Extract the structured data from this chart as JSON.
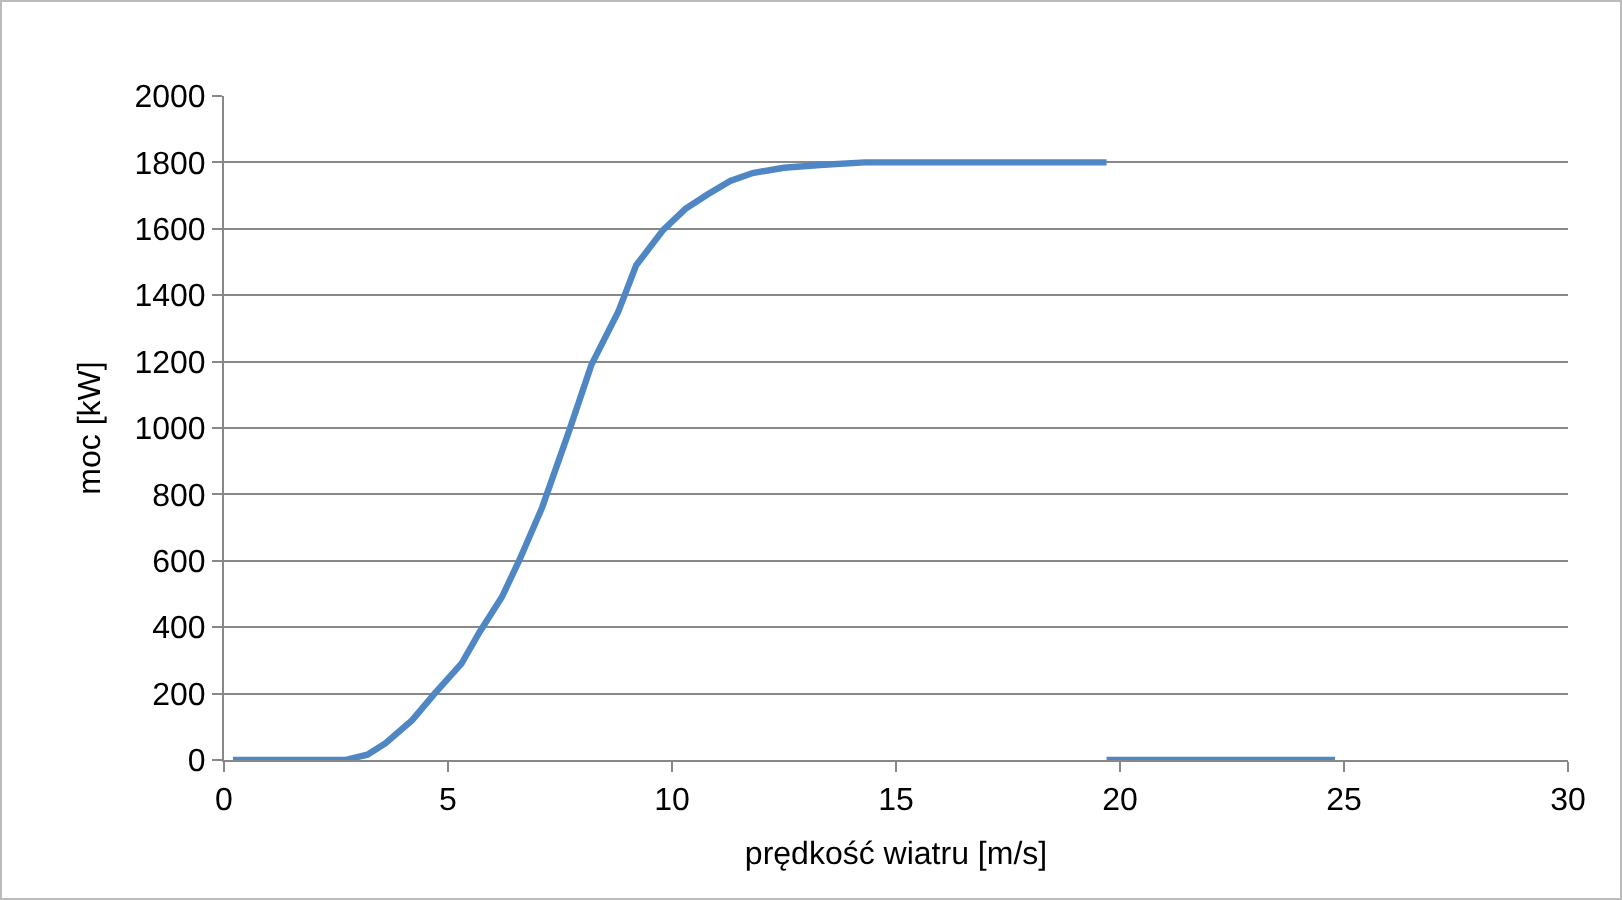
{
  "chart_data": {
    "type": "line",
    "xlabel": "prędkość wiatru [m/s]",
    "ylabel": "moc [kW]",
    "x": [
      0.2,
      2.7,
      3.2,
      3.6,
      4.2,
      4.7,
      5.3,
      5.7,
      6.2,
      6.6,
      7.1,
      7.7,
      8.2,
      8.8,
      9.2,
      9.8,
      10.3,
      10.8,
      11.3,
      11.8,
      12.5,
      13.3,
      14.3,
      19.7
    ],
    "series": [
      {
        "color": "#4f86c4",
        "values": [
          0,
          0,
          16,
          50,
          120,
          200,
          290,
          384,
          490,
          604,
          760,
          990,
          1190,
          1350,
          1490,
          1596,
          1660,
          1704,
          1744,
          1768,
          1784,
          1792,
          1800,
          1800
        ]
      },
      {
        "color": "#4f86c4",
        "x": [
          19.7,
          24.8
        ],
        "values": [
          0,
          0
        ]
      }
    ],
    "xlim": [
      0,
      30
    ],
    "xticks": [
      0,
      5,
      10,
      15,
      20,
      25,
      30
    ],
    "ylim": [
      0,
      2000
    ],
    "yticks": [
      0,
      200,
      400,
      600,
      800,
      1000,
      1200,
      1400,
      1600,
      1800,
      2000
    ],
    "grid": "y",
    "legend": false,
    "marker": "none",
    "line_style": "solid"
  }
}
